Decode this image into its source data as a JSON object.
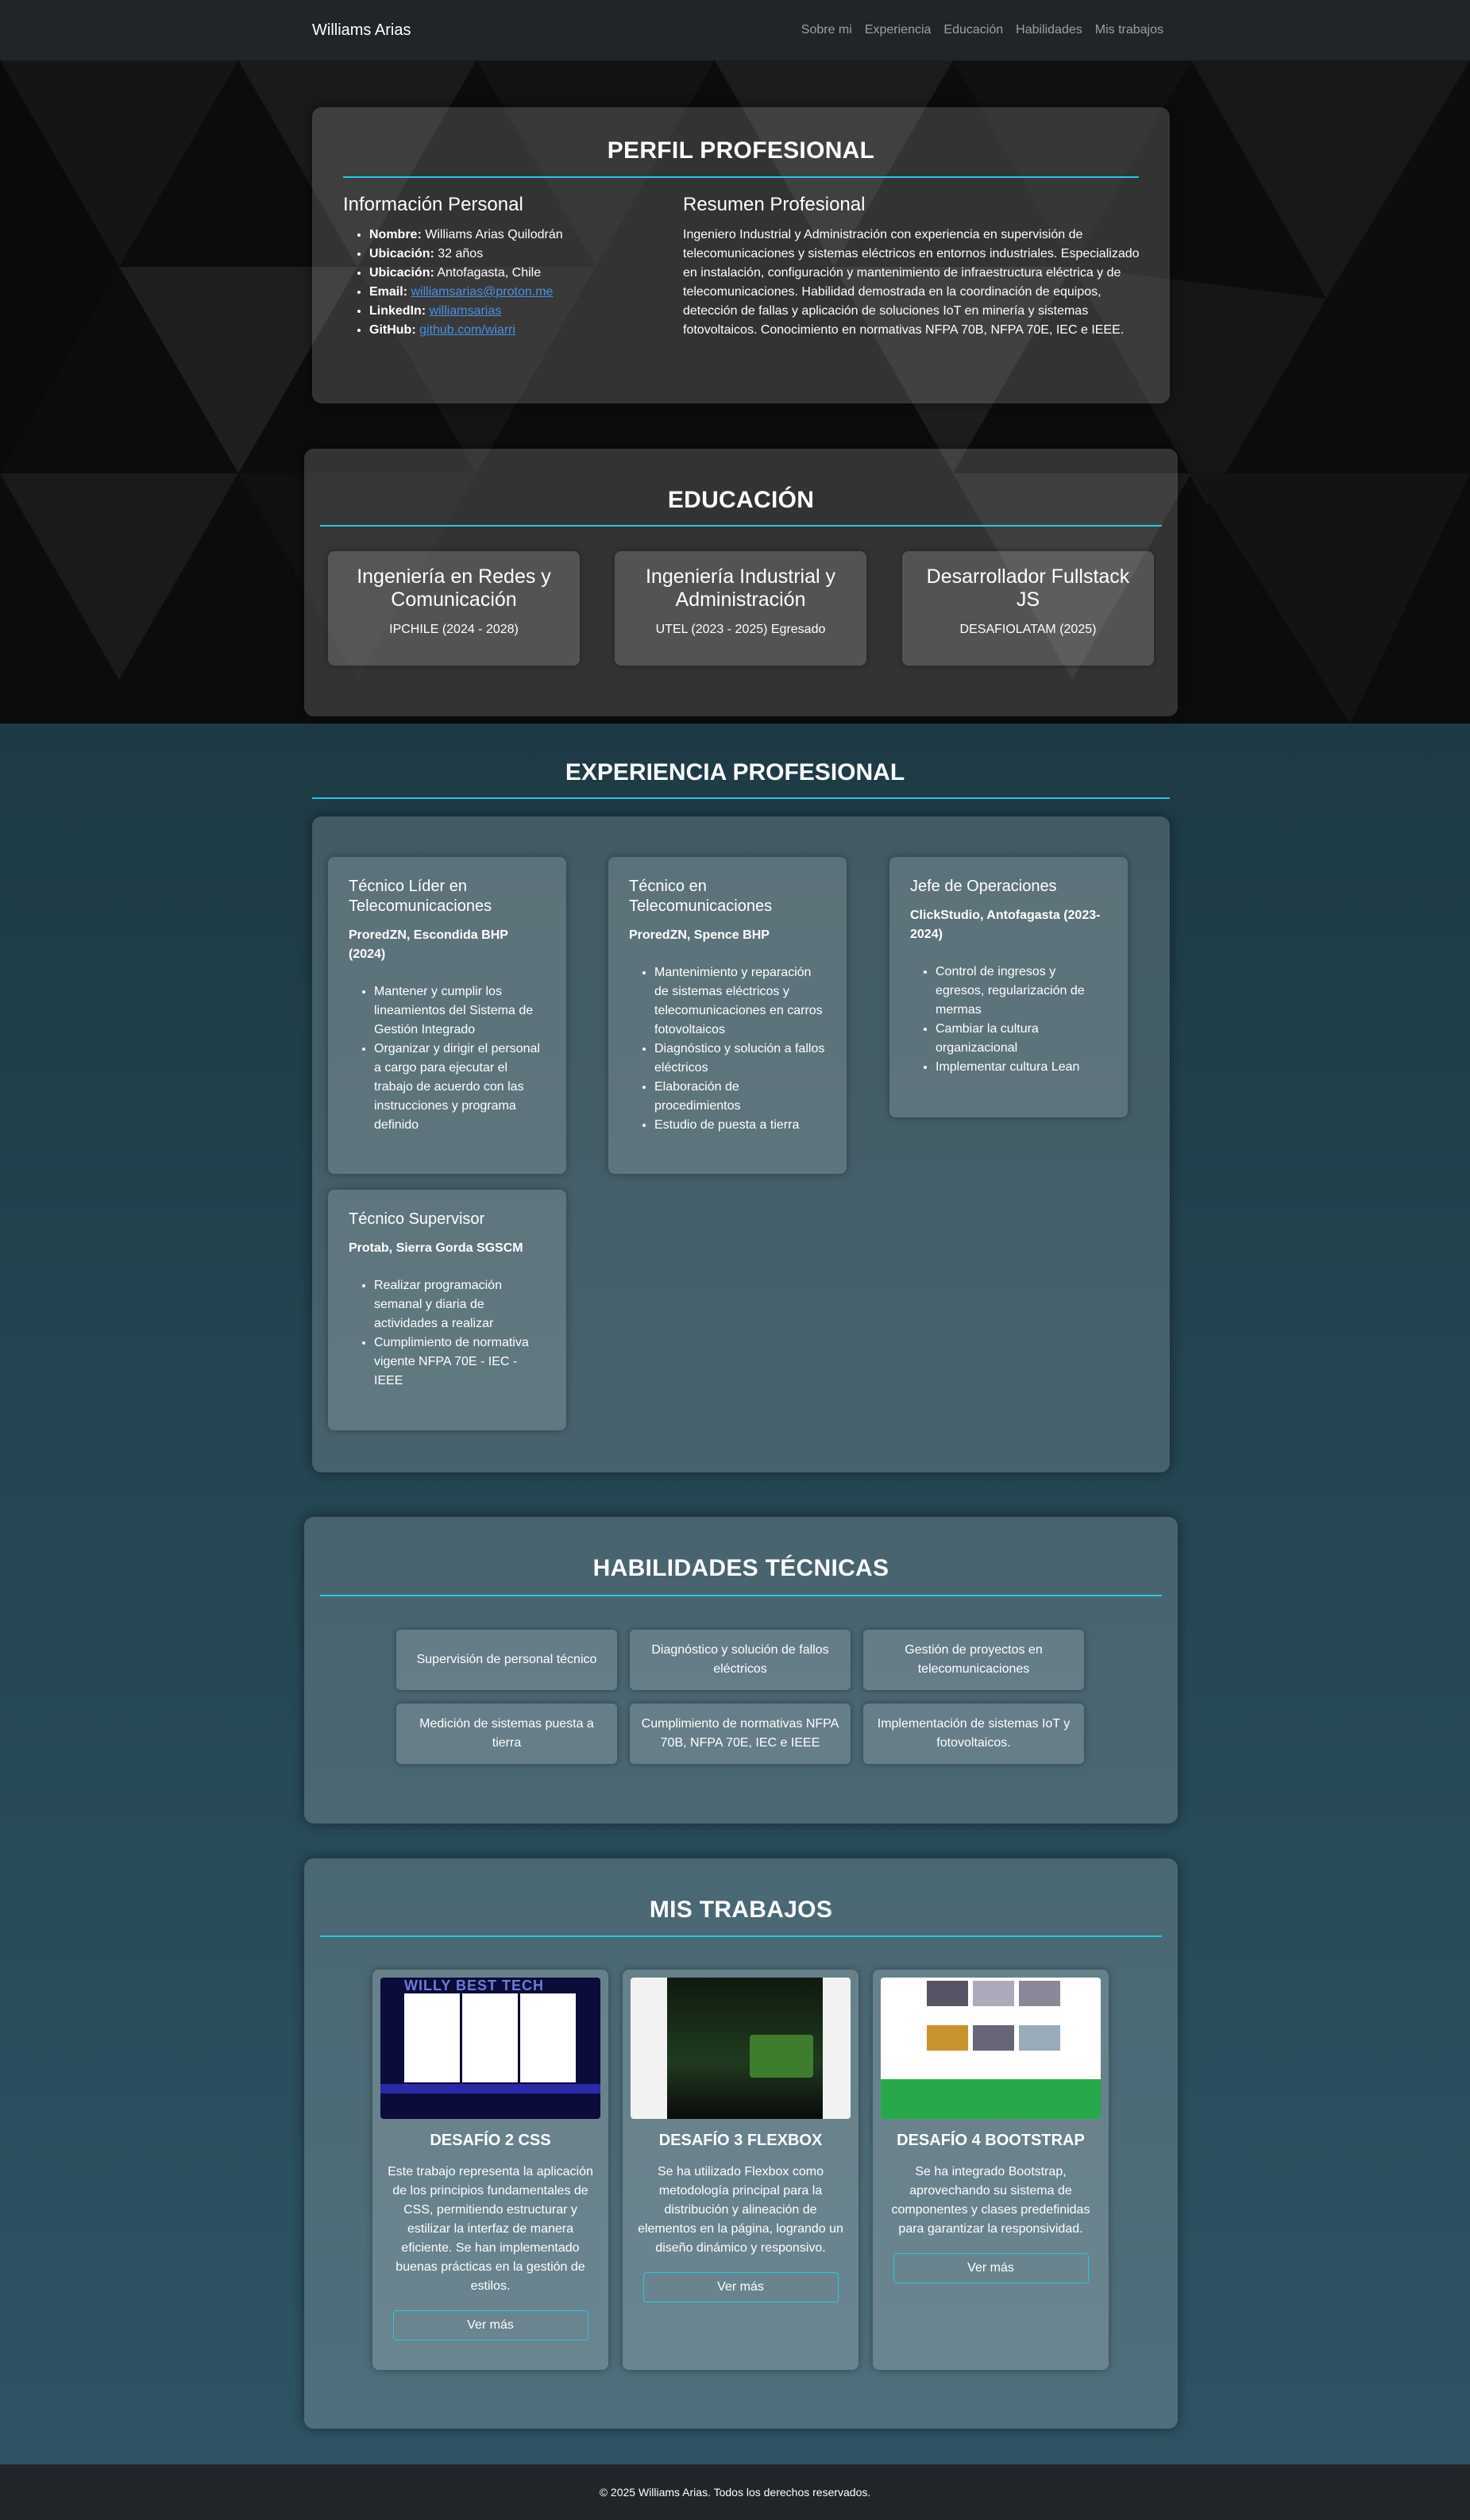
{
  "nav": {
    "brand": "Williams Arias",
    "links": [
      "Sobre mi",
      "Experiencia",
      "Educación",
      "Habilidades",
      "Mis trabajos"
    ]
  },
  "perfil": {
    "title": "PERFIL PROFESIONAL",
    "personal_title": "Información Personal",
    "personal": [
      {
        "label": "Nombre:",
        "value": "Williams Arias Quilodrán"
      },
      {
        "label": "Ubicación:",
        "value": "32 años"
      },
      {
        "label": "Ubicación:",
        "value": "Antofagasta, Chile"
      },
      {
        "label": "Email:",
        "value": "williamsarias@proton.me",
        "link": true
      },
      {
        "label": "LinkedIn:",
        "value": "williamsarias",
        "link": true
      },
      {
        "label": "GitHub:",
        "value": "github.com/wiarri",
        "link": true
      }
    ],
    "resumen_title": "Resumen Profesional",
    "resumen": "Ingeniero Industrial y Administración con experiencia en supervisión de telecomunicaciones y sistemas eléctricos en entornos industriales. Especializado en instalación, configuración y mantenimiento de infraestructura eléctrica y de telecomunicaciones. Habilidad demostrada en la coordinación de equipos, detección de fallas y aplicación de soluciones IoT en minería y sistemas fotovoltaicos. Conocimiento en normativas NFPA 70B, NFPA 70E, IEC e IEEE."
  },
  "educacion": {
    "title": "EDUCACIÓN",
    "items": [
      {
        "title": "Ingeniería en Redes y Comunicación",
        "sub": "IPCHILE (2024 - 2028)"
      },
      {
        "title": "Ingeniería Industrial y Administración",
        "sub": "UTEL (2023 - 2025) Egresado"
      },
      {
        "title": "Desarrollador Fullstack JS",
        "sub": "DESAFIOLATAM (2025)"
      }
    ]
  },
  "experiencia": {
    "title": "EXPERIENCIA PROFESIONAL",
    "items": [
      {
        "title": "Técnico Líder en Telecomunicaciones",
        "company": "ProredZN, Escondida BHP (2024)",
        "tasks": [
          "Mantener y cumplir los lineamientos del Sistema de Gestión Integrado",
          "Organizar y dirigir el personal a cargo para ejecutar el trabajo de acuerdo con las instrucciones y programa definido"
        ]
      },
      {
        "title": "Técnico en Telecomunicaciones",
        "company": "ProredZN, Spence BHP",
        "tasks": [
          "Mantenimiento y reparación de sistemas eléctricos y telecomunicaciones en carros fotovoltaicos",
          "Diagnóstico y solución a fallos eléctricos",
          "Elaboración de procedimientos",
          "Estudio de puesta a tierra"
        ]
      },
      {
        "title": "Jefe de Operaciones",
        "company": "ClickStudio, Antofagasta (2023-2024)",
        "tasks": [
          "Control de ingresos y egresos, regularización de mermas",
          "Cambiar la cultura organizacional",
          "Implementar cultura Lean"
        ]
      },
      {
        "title": "Técnico Supervisor",
        "company": "Protab, Sierra Gorda SGSCM",
        "tasks": [
          "Realizar programación semanal y diaria de actividades a realizar",
          "Cumplimiento de normativa vigente NFPA 70E - IEC - IEEE"
        ]
      }
    ]
  },
  "habilidades": {
    "title": "HABILIDADES TÉCNICAS",
    "items": [
      "Supervisión de personal técnico",
      "Diagnóstico y solución de fallos eléctricos",
      "Gestión de proyectos en telecomunicaciones",
      "Medición de sistemas puesta a tierra",
      "Cumplimiento de normativas NFPA 70B, NFPA 70E, IEC e IEEE",
      "Implementación de sistemas IoT y fotovoltaicos."
    ]
  },
  "trabajos": {
    "title": "MIS TRABAJOS",
    "button": "Ver más",
    "items": [
      {
        "title": "DESAFÍO 2 CSS",
        "desc": "Este trabajo representa la aplicación de los principios fundamentales de CSS, permitiendo estructurar y estilizar la interfaz de manera eficiente. Se han implementado buenas prácticas en la gestión de estilos.",
        "thumb_logo": "WILLY BEST TECH"
      },
      {
        "title": "DESAFÍO 3 FLEXBOX",
        "desc": "Se ha utilizado Flexbox como metodología principal para la distribución y alineación de elementos en la página, logrando un diseño dinámico y responsivo."
      },
      {
        "title": "DESAFÍO 4 BOOTSTRAP",
        "desc": "Se ha integrado Bootstrap, aprovechando su sistema de componentes y clases predefinidas para garantizar la responsividad."
      }
    ]
  },
  "footer": "© 2025 Williams Arias. Todos los derechos reservados.",
  "colors": {
    "accent": "#28c7e0",
    "nav": "#212529",
    "link": "#4a90e2"
  }
}
